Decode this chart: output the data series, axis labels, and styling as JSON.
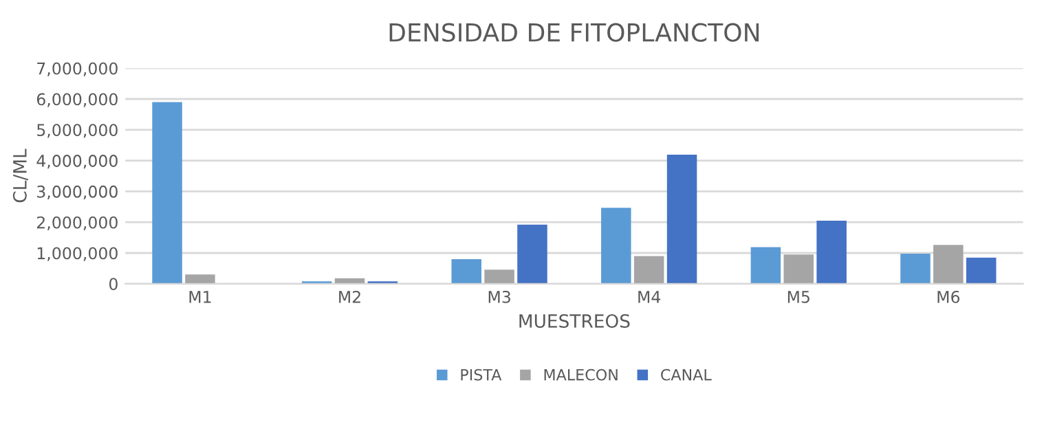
{
  "chart_data": {
    "type": "bar",
    "title": "DENSIDAD DE FITOPLANCTON",
    "xlabel": "MUESTREOS",
    "ylabel": "CL/ML",
    "categories": [
      "M1",
      "M2",
      "M3",
      "M4",
      "M5",
      "M6"
    ],
    "series": [
      {
        "name": "PISTA",
        "color": "#5b9bd5",
        "values": [
          5900000,
          80000,
          800000,
          2470000,
          1190000,
          980000
        ]
      },
      {
        "name": "MALECON",
        "color": "#a5a5a5",
        "values": [
          300000,
          180000,
          460000,
          900000,
          950000,
          1260000
        ]
      },
      {
        "name": "CANAL",
        "color": "#4472c4",
        "values": [
          0,
          80000,
          1920000,
          4190000,
          2050000,
          850000
        ]
      }
    ],
    "ylim": [
      0,
      7000000
    ],
    "yticks": [
      {
        "value": 0,
        "label": "0"
      },
      {
        "value": 1000000,
        "label": "1,000,000"
      },
      {
        "value": 2000000,
        "label": "2,000,000"
      },
      {
        "value": 3000000,
        "label": "3,000,000"
      },
      {
        "value": 4000000,
        "label": "4,000,000"
      },
      {
        "value": 5000000,
        "label": "5,000,000"
      },
      {
        "value": 6000000,
        "label": "6,000,000"
      },
      {
        "value": 7000000,
        "label": "7,000,000"
      }
    ],
    "grid": "y",
    "legend": "bottom"
  }
}
